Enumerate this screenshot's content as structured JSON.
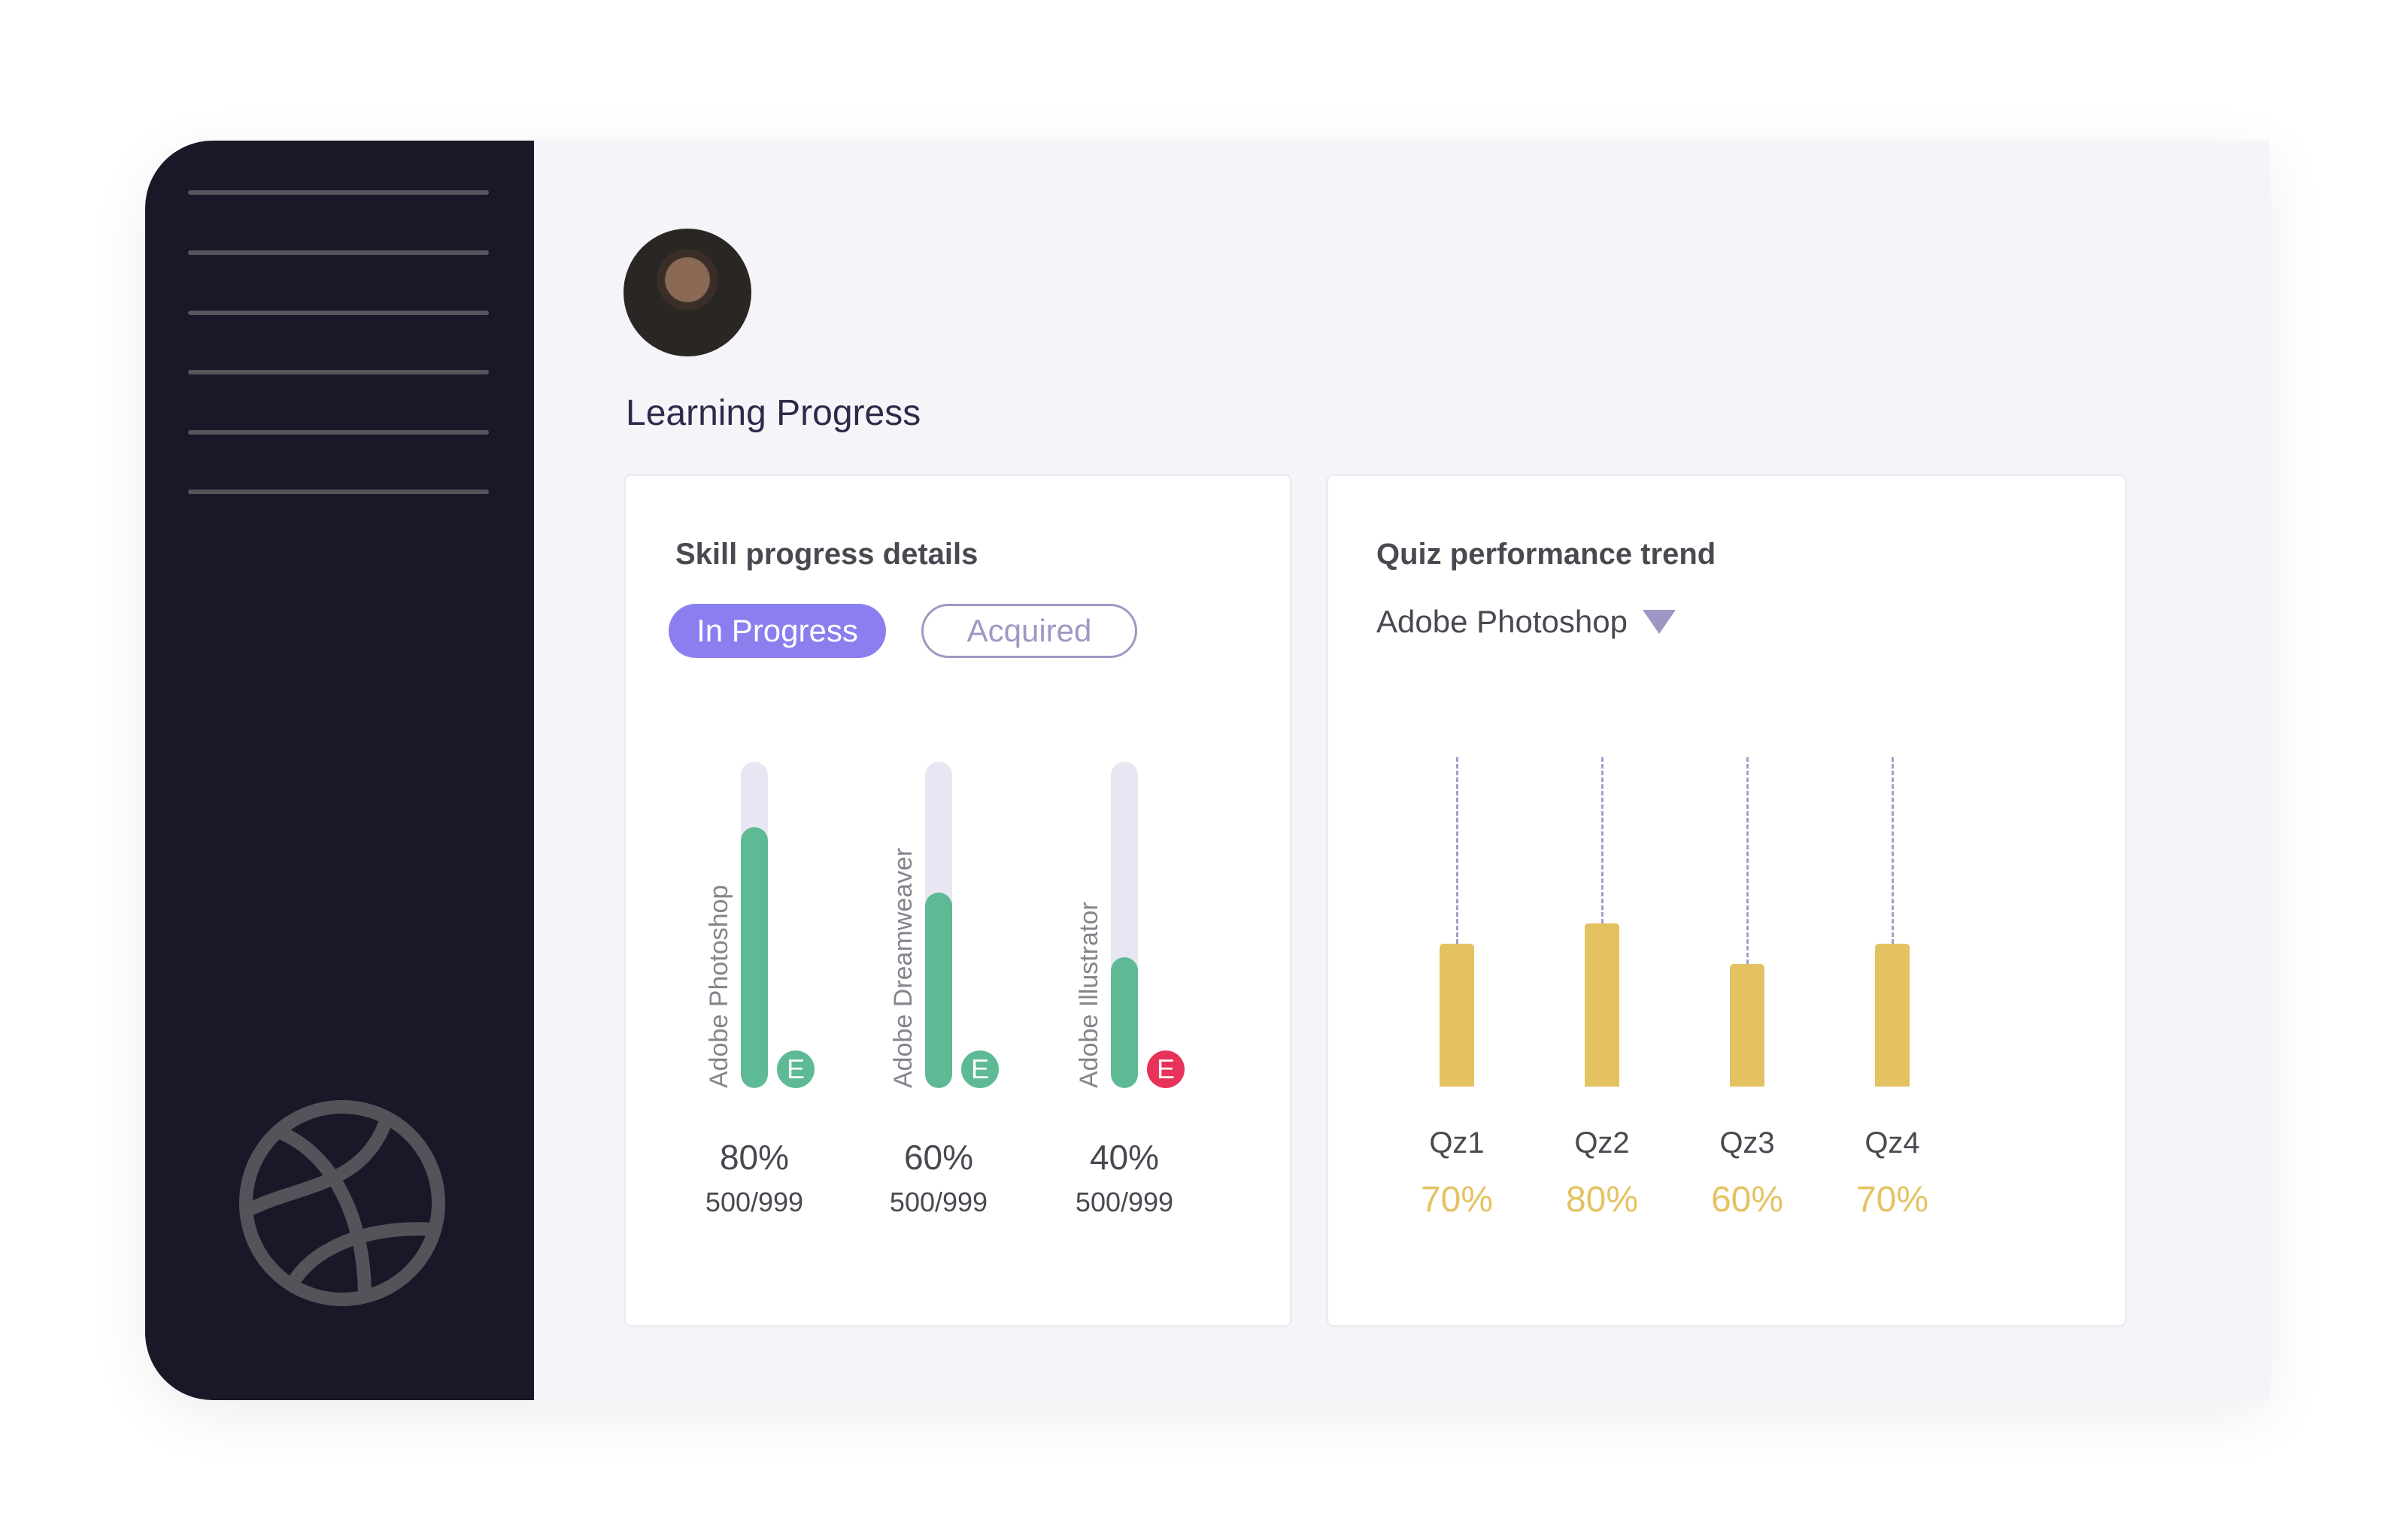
{
  "page": {
    "title": "Learning Progress"
  },
  "colors": {
    "sidebar": "#1a1728",
    "accent": "#8b7ff0",
    "progress": "#5dba94",
    "badge_ok": "#5dba94",
    "badge_warn": "#e7325a",
    "quiz_bar": "#e4c262"
  },
  "sidebar": {
    "menu_icon": "hamburger-lines",
    "logo_icon": "basketball-icon"
  },
  "skills": {
    "title": "Skill progress details",
    "tabs": [
      {
        "label": "In Progress",
        "active": true
      },
      {
        "label": "Acquired",
        "active": false
      }
    ],
    "items": [
      {
        "name": "Adobe Photoshop",
        "progress": 80,
        "percent": "80%",
        "count": "500/999",
        "badge": "E",
        "badge_color": "#5dba94"
      },
      {
        "name": "Adobe Dreamweaver",
        "progress": 60,
        "percent": "60%",
        "count": "500/999",
        "badge": "E",
        "badge_color": "#5dba94"
      },
      {
        "name": "Adobe Illustrator",
        "progress": 40,
        "percent": "40%",
        "count": "500/999",
        "badge": "E",
        "badge_color": "#e7325a"
      }
    ]
  },
  "quiz": {
    "title": "Quiz performance trend",
    "selected": "Adobe Photoshop"
  },
  "chart_data": {
    "type": "bar",
    "categories": [
      "Qz1",
      "Qz2",
      "Qz3",
      "Qz4"
    ],
    "values": [
      70,
      80,
      60,
      70
    ],
    "labels": [
      "70%",
      "80%",
      "60%",
      "70%"
    ],
    "ylim": [
      0,
      100
    ],
    "grid": false
  }
}
